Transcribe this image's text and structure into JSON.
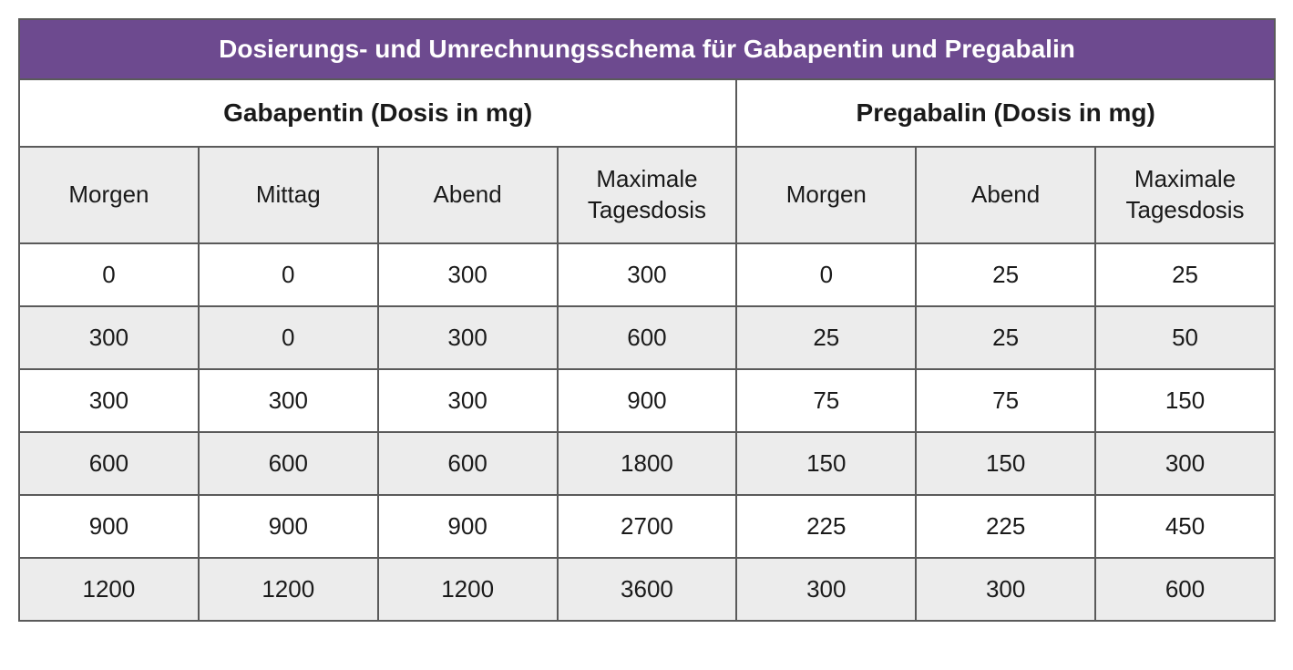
{
  "table": {
    "title": "Dosierungs- und Umrechnungsschema für Gabapentin und Pregabalin",
    "groups": [
      {
        "label": "Gabapentin (Dosis in mg)",
        "span": 4
      },
      {
        "label": "Pregabalin (Dosis in mg)",
        "span": 3
      }
    ],
    "columns": [
      "Morgen",
      "Mittag",
      "Abend",
      "Maximale Tagesdosis",
      "Morgen",
      "Abend",
      "Maximale Tagesdosis"
    ],
    "rows": [
      [
        "0",
        "0",
        "300",
        "300",
        "0",
        "25",
        "25"
      ],
      [
        "300",
        "0",
        "300",
        "600",
        "25",
        "25",
        "50"
      ],
      [
        "300",
        "300",
        "300",
        "900",
        "75",
        "75",
        "150"
      ],
      [
        "600",
        "600",
        "600",
        "1800",
        "150",
        "150",
        "300"
      ],
      [
        "900",
        "900",
        "900",
        "2700",
        "225",
        "225",
        "450"
      ],
      [
        "1200",
        "1200",
        "1200",
        "3600",
        "300",
        "300",
        "600"
      ]
    ],
    "colors": {
      "header_bg": "#6d4a8f",
      "header_text": "#ffffff",
      "alt_row_bg": "#ececec",
      "row_bg": "#ffffff",
      "border": "#5a5a5a",
      "text": "#1a1a1a"
    },
    "fonts": {
      "title_size_pt": 21,
      "group_size_pt": 21,
      "col_size_pt": 20,
      "cell_size_pt": 20,
      "title_weight": "bold",
      "group_weight": "bold",
      "col_weight": "normal",
      "cell_weight": "normal"
    }
  }
}
